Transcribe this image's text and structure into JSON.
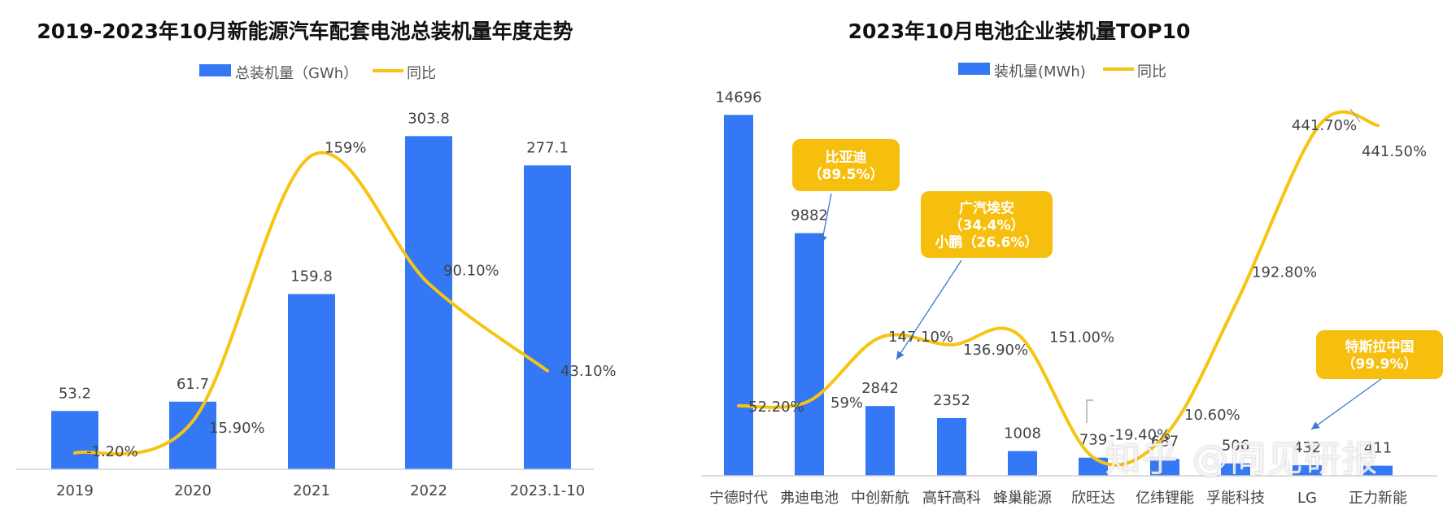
{
  "chart_data": [
    {
      "type": "bar",
      "title": "2019-2023年10月新能源汽车配套电池总装机量年度走势",
      "categories": [
        "2019",
        "2020",
        "2021",
        "2022",
        "2023.1-10"
      ],
      "series": [
        {
          "name": "总装机量（GWh）",
          "type": "bar",
          "values": [
            53.2,
            61.7,
            159.8,
            303.8,
            277.1
          ],
          "labels": [
            "53.2",
            "61.7",
            "159.8",
            "303.8",
            "277.1"
          ]
        },
        {
          "name": "同比",
          "type": "line",
          "values": [
            -1.2,
            15.9,
            159,
            90.1,
            43.1
          ],
          "labels": [
            "-1.20%",
            "15.90%",
            "159%",
            "90.10%",
            "43.10%"
          ]
        }
      ],
      "ylim": [
        0,
        330
      ],
      "y2lim": [
        -10,
        185
      ],
      "legend": "top-center",
      "grid": false,
      "colors": {
        "bar": "#3478f6",
        "line": "#f6c412"
      }
    },
    {
      "type": "bar",
      "title": "2023年10月电池企业装机量TOP10",
      "categories": [
        "宁德时代",
        "弗迪电池",
        "中创新航",
        "高轩高科",
        "蜂巢能源",
        "欣旺达",
        "亿纬锂能",
        "孚能科技",
        "LG",
        "正力新能"
      ],
      "series": [
        {
          "name": "装机量(MWh)",
          "type": "bar",
          "values": [
            14696,
            9882,
            2842,
            2352,
            1008,
            739,
            687,
            506,
            432,
            411
          ],
          "labels": [
            "14696",
            "9882",
            "2842",
            "2352",
            "1008",
            "739",
            "687",
            "506",
            "432",
            "411"
          ]
        },
        {
          "name": "同比",
          "type": "line",
          "values": [
            52.2,
            59,
            147.1,
            136.9,
            151,
            -19.4,
            10.6,
            192.8,
            441.7,
            441.5
          ],
          "labels": [
            "52.20%",
            "59%",
            "147.10%",
            "136.90%",
            "151.00%",
            "-19.40%",
            "10.60%",
            "192.80%",
            "441.70%",
            "441.50%"
          ]
        }
      ],
      "ylim": [
        0,
        15400
      ],
      "y2lim": [
        -45,
        480
      ],
      "legend": "top-center",
      "grid": false,
      "annotations": [
        {
          "lines": [
            "比亚迪",
            "（89.5%）"
          ],
          "target": "弗迪电池"
        },
        {
          "lines": [
            "广汽埃安",
            "（34.4%）",
            "小鹏（26.6%）"
          ],
          "target": "中创新航"
        },
        {
          "lines": [
            "特斯拉中国",
            "（99.9%）"
          ],
          "target": "LG"
        }
      ],
      "colors": {
        "bar": "#3478f6",
        "line": "#f6c412",
        "callout": "#f7bf0d"
      }
    }
  ],
  "watermark": "知乎 @同见研报"
}
